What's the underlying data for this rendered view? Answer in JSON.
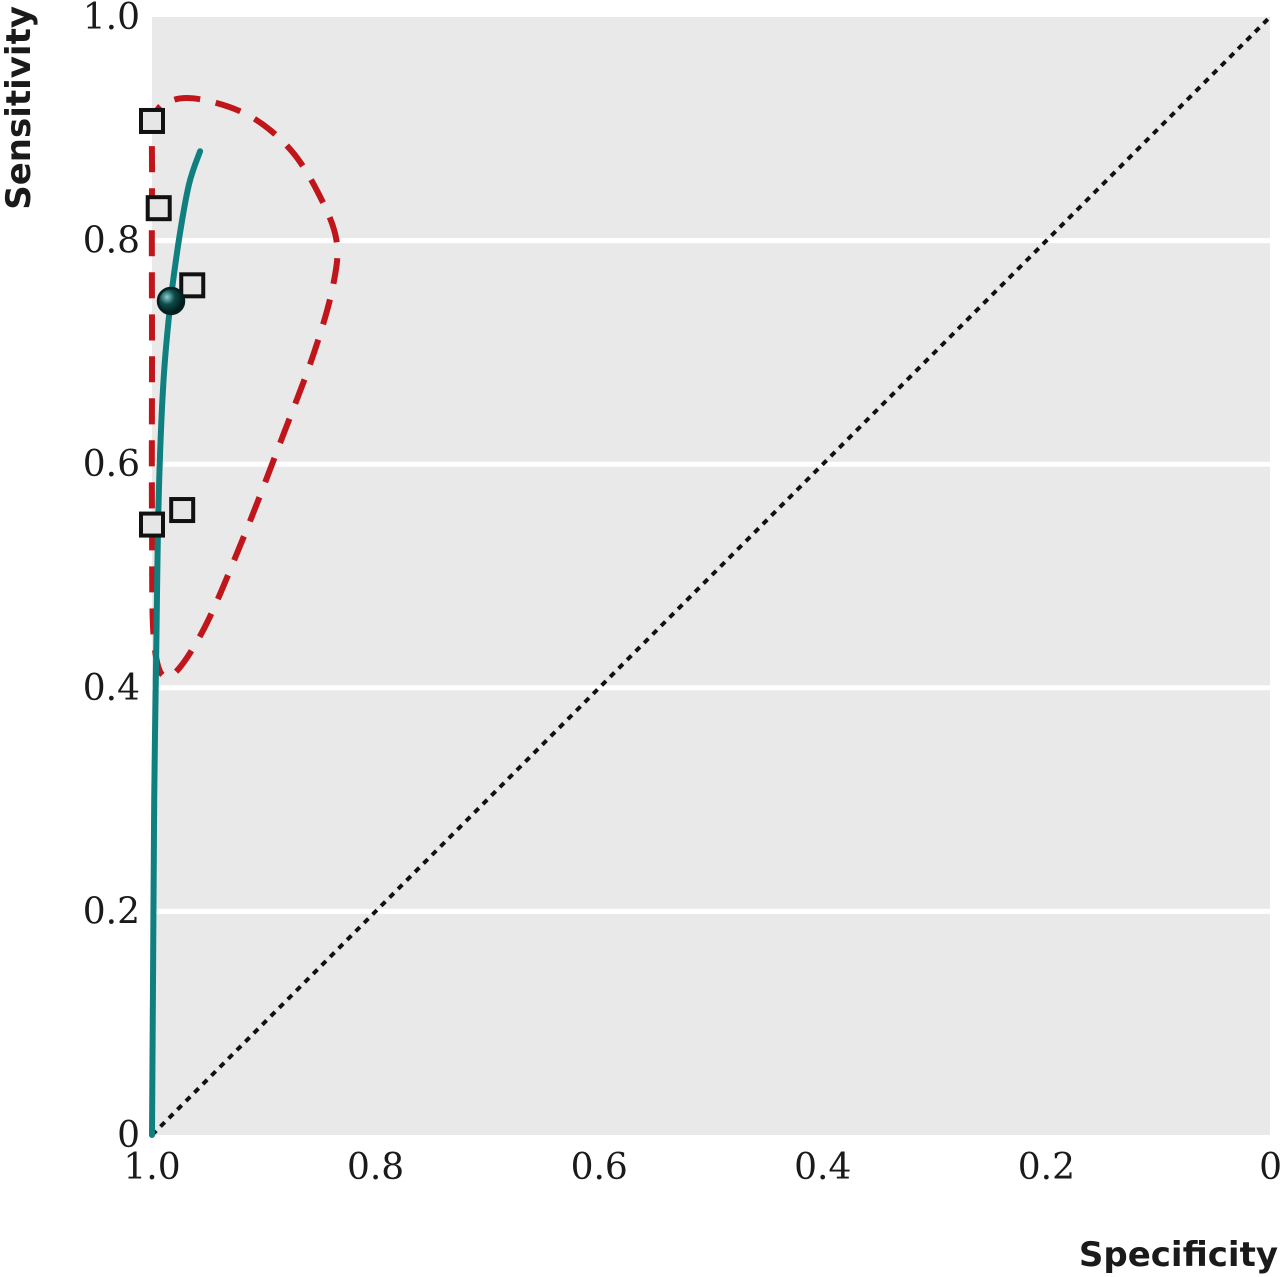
{
  "chart_data": {
    "type": "scatter",
    "title": "",
    "xlabel": "Specificity",
    "ylabel": "Sensitivity",
    "xlim": [
      1.0,
      0.0
    ],
    "ylim": [
      0.0,
      1.0
    ],
    "x_reversed": true,
    "xticks": [
      {
        "value": 1.0,
        "label": "1.0"
      },
      {
        "value": 0.8,
        "label": "0.8"
      },
      {
        "value": 0.6,
        "label": "0.6"
      },
      {
        "value": 0.4,
        "label": "0.4"
      },
      {
        "value": 0.2,
        "label": "0.2"
      },
      {
        "value": 0.0,
        "label": "0"
      }
    ],
    "yticks": [
      {
        "value": 0.0,
        "label": "0"
      },
      {
        "value": 0.2,
        "label": "0.2"
      },
      {
        "value": 0.4,
        "label": "0.4"
      },
      {
        "value": 0.6,
        "label": "0.6"
      },
      {
        "value": 0.8,
        "label": "0.8"
      },
      {
        "value": 1.0,
        "label": "1.0"
      }
    ],
    "grid": "horizontal",
    "colors": {
      "plot_background": "#e9e9e9",
      "gridline": "#ffffff",
      "sroc_curve": "#0f7f7f",
      "confidence_region": "#c0161b",
      "reference_line": "#111111",
      "study_marker_fill": "#e6e6e6",
      "study_marker_stroke": "#111111",
      "summary_point": "#0d4a4a"
    },
    "series": [
      {
        "kind": "study-points",
        "marker": "square",
        "points": [
          {
            "specificity": 1.0,
            "sensitivity": 0.907
          },
          {
            "specificity": 0.994,
            "sensitivity": 0.829
          },
          {
            "specificity": 0.964,
            "sensitivity": 0.76
          },
          {
            "specificity": 1.0,
            "sensitivity": 0.546
          },
          {
            "specificity": 0.973,
            "sensitivity": 0.559
          }
        ]
      },
      {
        "kind": "summary-point",
        "marker": "circle",
        "points": [
          {
            "specificity": 0.983,
            "sensitivity": 0.746
          }
        ]
      },
      {
        "kind": "sroc-curve",
        "style": "solid",
        "points": [
          {
            "specificity": 1.0,
            "sensitivity": 0.0
          },
          {
            "specificity": 0.999,
            "sensitivity": 0.15
          },
          {
            "specificity": 0.998,
            "sensitivity": 0.3
          },
          {
            "specificity": 0.996,
            "sensitivity": 0.45
          },
          {
            "specificity": 0.994,
            "sensitivity": 0.57
          },
          {
            "specificity": 0.99,
            "sensitivity": 0.67
          },
          {
            "specificity": 0.984,
            "sensitivity": 0.74
          },
          {
            "specificity": 0.976,
            "sensitivity": 0.8
          },
          {
            "specificity": 0.967,
            "sensitivity": 0.85
          },
          {
            "specificity": 0.957,
            "sensitivity": 0.88
          }
        ]
      },
      {
        "kind": "confidence-region",
        "style": "dashed",
        "points": [
          {
            "specificity": 0.98,
            "sensitivity": 0.926
          },
          {
            "specificity": 0.95,
            "sensitivity": 0.925
          },
          {
            "specificity": 0.91,
            "sensitivity": 0.91
          },
          {
            "specificity": 0.875,
            "sensitivity": 0.88
          },
          {
            "specificity": 0.85,
            "sensitivity": 0.84
          },
          {
            "specificity": 0.835,
            "sensitivity": 0.8
          },
          {
            "specificity": 0.838,
            "sensitivity": 0.76
          },
          {
            "specificity": 0.855,
            "sensitivity": 0.7
          },
          {
            "specificity": 0.885,
            "sensitivity": 0.62
          },
          {
            "specificity": 0.92,
            "sensitivity": 0.53
          },
          {
            "specificity": 0.955,
            "sensitivity": 0.45
          },
          {
            "specificity": 0.985,
            "sensitivity": 0.41
          },
          {
            "specificity": 0.998,
            "sensitivity": 0.44
          },
          {
            "specificity": 1.0,
            "sensitivity": 0.55
          },
          {
            "specificity": 1.0,
            "sensitivity": 0.7
          },
          {
            "specificity": 1.0,
            "sensitivity": 0.85
          },
          {
            "specificity": 0.998,
            "sensitivity": 0.91
          }
        ]
      },
      {
        "kind": "reference-line",
        "style": "dotted",
        "points": [
          {
            "specificity": 1.0,
            "sensitivity": 0.0
          },
          {
            "specificity": 0.0,
            "sensitivity": 1.0
          }
        ]
      }
    ]
  }
}
